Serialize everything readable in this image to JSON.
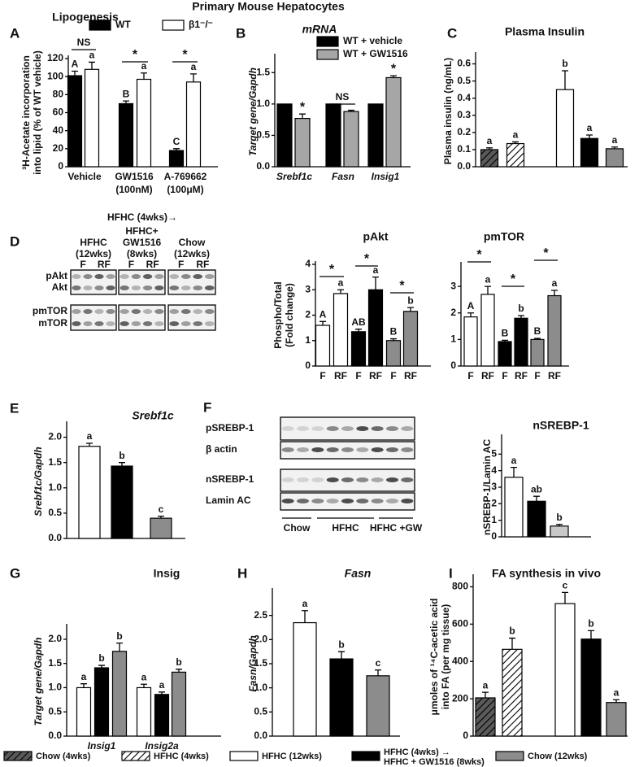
{
  "title": "Primary Mouse Hepatocytes",
  "chart_data": [
    {
      "panel": "A",
      "type": "bar",
      "title": "Lipogenesis",
      "ylabel": [
        "³H-Acetate incorporation",
        "into lipid (% of WT vehicle)"
      ],
      "categories": [
        "Vehicle",
        "GW1516",
        "A-769662"
      ],
      "category_sublabels": [
        null,
        "(100nM)",
        "(100μM)"
      ],
      "series": [
        {
          "name": "WT",
          "color": "#000000",
          "values": [
            101,
            70,
            18
          ],
          "errors": [
            5,
            3,
            2
          ],
          "letters": [
            "A",
            "B",
            "C"
          ]
        },
        {
          "name": "β1⁻/⁻",
          "color": "#ffffff",
          "values": [
            108,
            97,
            94
          ],
          "errors": [
            8,
            7,
            9
          ],
          "letters": [
            "a",
            "a",
            "a"
          ]
        }
      ],
      "brackets": [
        "NS",
        "*",
        "*"
      ],
      "ylim": [
        0,
        120
      ],
      "yticks": [
        0,
        20,
        40,
        60,
        80,
        100,
        120
      ]
    },
    {
      "panel": "B",
      "type": "bar",
      "title": "mRNA",
      "ylabel": "Target gene/Gapdh",
      "categories": [
        "Srebf1c",
        "Fasn",
        "Insig1"
      ],
      "series": [
        {
          "name": "WT + vehicle",
          "color": "#000000",
          "values": [
            1,
            1,
            1
          ]
        },
        {
          "name": "WT + GW1516",
          "color": "#a6a6a6",
          "values": [
            0.77,
            0.88,
            1.42
          ],
          "errors": [
            0.07,
            0.02,
            0.03
          ],
          "letters": [
            "*",
            null,
            "*"
          ]
        }
      ],
      "brackets": [
        null,
        "NS",
        null
      ],
      "ylim": [
        0,
        1.75
      ],
      "yticks": [
        {
          "value": 0,
          "label": "0.0"
        },
        0.5,
        {
          "value": 1,
          "label": "1.0"
        },
        1.5
      ]
    },
    {
      "panel": "C",
      "type": "bar",
      "title": "Plasma Insulin",
      "ylabel": "Plasma insulin (ng/mL)",
      "series": [
        {
          "color": [
            "#5a5a5a",
            "#ffffff",
            "#ffffff",
            "#000000",
            "#8c8c8c"
          ],
          "hatch": [
            true,
            true,
            false,
            false,
            false
          ],
          "values": [
            0.1,
            0.135,
            0.45,
            0.165,
            0.105
          ],
          "errors": [
            0.01,
            0.01,
            0.11,
            0.02,
            0.01
          ],
          "letters": [
            "a",
            "a",
            "b",
            "a",
            "a"
          ]
        }
      ],
      "ylim": [
        0,
        0.65
      ],
      "yticks": [
        {
          "value": 0,
          "label": "0.0"
        },
        0.1,
        0.2,
        0.3,
        0.4,
        0.5,
        0.6
      ]
    },
    {
      "type": "bar",
      "title": "pAkt",
      "ylabel": [
        "Phospho/Total",
        "(Fold change)"
      ],
      "categories": [
        "F",
        "RF",
        "F",
        "RF",
        "F",
        "RF"
      ],
      "series": [
        {
          "color": [
            "#ffffff",
            "#ffffff",
            "#000000",
            "#000000",
            "#8c8c8c",
            "#8c8c8c"
          ],
          "values": [
            1.6,
            2.85,
            1.35,
            3.0,
            1.0,
            2.15
          ],
          "errors": [
            0.15,
            0.15,
            0.1,
            0.5,
            0.07,
            0.15
          ],
          "letters": [
            "A",
            "a",
            "AB",
            "a",
            "B",
            "b"
          ]
        }
      ],
      "brackets": [
        "*",
        "*",
        "*"
      ],
      "ylim": [
        0,
        4
      ],
      "yticks": [
        0,
        1,
        2,
        3,
        4
      ]
    },
    {
      "type": "bar",
      "title": "pmTOR",
      "categories": [
        "F",
        "RF",
        "F",
        "RF",
        "F",
        "RF"
      ],
      "series": [
        {
          "color": [
            "#ffffff",
            "#ffffff",
            "#000000",
            "#000000",
            "#8c8c8c",
            "#8c8c8c"
          ],
          "values": [
            1.85,
            2.7,
            0.92,
            1.8,
            1.0,
            2.65
          ],
          "errors": [
            0.15,
            0.3,
            0.05,
            0.1,
            0.04,
            0.2
          ],
          "letters": [
            "A",
            "a",
            "B",
            "b",
            "B",
            "a"
          ]
        }
      ],
      "brackets": [
        "*",
        "*",
        "*"
      ],
      "ylim": [
        0,
        3.8
      ],
      "yticks": [
        0,
        1,
        2,
        3
      ]
    },
    {
      "panel": "E",
      "type": "bar",
      "title": "Srebf1c",
      "ylabel": "Srebf1c/Gapdh",
      "series": [
        {
          "color": [
            "#ffffff",
            "#000000",
            "#8c8c8c"
          ],
          "values": [
            1.82,
            1.43,
            0.4
          ],
          "errors": [
            0.06,
            0.07,
            0.04
          ],
          "letters": [
            "a",
            "b",
            "c"
          ]
        }
      ],
      "ylim": [
        0,
        2.25
      ],
      "yticks": [
        {
          "value": 0,
          "label": "0.0"
        },
        0.5,
        {
          "value": 1,
          "label": "1.0"
        },
        1.5,
        {
          "value": 2,
          "label": "2.0"
        }
      ]
    },
    {
      "type": "bar",
      "title": "nSREBP-1",
      "ylabel": "nSREBP-1/Lamin AC",
      "series": [
        {
          "color": [
            "#ffffff",
            "#000000",
            "#c8c8c8"
          ],
          "values": [
            3.6,
            2.15,
            0.65
          ],
          "errors": [
            0.6,
            0.3,
            0.1
          ],
          "letters": [
            "a",
            "ab",
            "b"
          ]
        }
      ],
      "ylim": [
        0,
        6
      ],
      "yticks": [
        0,
        1,
        2,
        3,
        4,
        5
      ]
    },
    {
      "panel": "G",
      "type": "bar",
      "title": "Insig",
      "ylabel": "Target gene/Gapdh",
      "categories": [
        "Insig1",
        "Insig2a"
      ],
      "series": [
        {
          "color": "#ffffff",
          "values": [
            1.0,
            1.0
          ],
          "errors": [
            0.08,
            0.07
          ],
          "letters": [
            "a",
            "a"
          ]
        },
        {
          "color": "#000000",
          "values": [
            1.41,
            0.86
          ],
          "errors": [
            0.05,
            0.05
          ],
          "letters": [
            "b",
            "a"
          ]
        },
        {
          "color": "#8c8c8c",
          "values": [
            1.75,
            1.32
          ],
          "errors": [
            0.17,
            0.06
          ],
          "letters": [
            "b",
            "b"
          ]
        }
      ],
      "ylim": [
        0,
        2.25
      ],
      "yticks": [
        {
          "value": 0,
          "label": "0.0"
        },
        0.5,
        {
          "value": 1,
          "label": "1.0"
        },
        1.5,
        {
          "value": 2,
          "label": "2.0"
        }
      ]
    },
    {
      "panel": "H",
      "type": "bar",
      "title": "Fasn",
      "ylabel": "Fasn/Gapdh",
      "series": [
        {
          "color": [
            "#ffffff",
            "#000000",
            "#8c8c8c"
          ],
          "values": [
            2.35,
            1.6,
            1.25
          ],
          "errors": [
            0.25,
            0.15,
            0.12
          ],
          "letters": [
            "a",
            "b",
            "c"
          ]
        }
      ],
      "ylim": [
        0,
        3
      ],
      "yticks": [
        {
          "value": 0,
          "label": "0.0"
        },
        0.5,
        {
          "value": 1,
          "label": "1.0"
        },
        1.5,
        {
          "value": 2,
          "label": "2.0"
        },
        2.5
      ]
    },
    {
      "panel": "I",
      "type": "bar",
      "title": "FA synthesis in vivo",
      "ylabel": [
        "μmoles of ¹⁴C-acetic acid",
        "into FA (per mg tissue)"
      ],
      "series": [
        {
          "color": [
            "#5a5a5a",
            "#ffffff",
            "#ffffff",
            "#000000",
            "#8c8c8c"
          ],
          "hatch": [
            true,
            true,
            false,
            false,
            false
          ],
          "values": [
            205,
            465,
            710,
            520,
            180
          ],
          "errors": [
            30,
            60,
            60,
            45,
            15
          ],
          "letters": [
            "a",
            "b",
            "c",
            "b",
            "a"
          ]
        }
      ],
      "ylim": [
        0,
        850
      ],
      "yticks": [
        0,
        200,
        400,
        600,
        800
      ]
    }
  ],
  "blots": [
    {
      "panel": "D",
      "header": "HFHC (4wks)→",
      "rows": [
        "pAkt",
        "Akt",
        "pmTOR",
        "mTOR"
      ],
      "groups": [
        {
          "label": [
            "HFHC",
            "(12wks)"
          ],
          "lanes": [
            "F",
            "RF"
          ]
        },
        {
          "label": [
            "HFHC+",
            "GW1516",
            "(8wks)"
          ],
          "lanes": [
            "F",
            "RF"
          ]
        },
        {
          "label": [
            "Chow",
            "(12wks)"
          ],
          "lanes": [
            "F",
            "RF"
          ]
        }
      ]
    },
    {
      "panel": "F",
      "rows": [
        "pSREBP-1",
        "β actin",
        "nSREBP-1",
        "Lamin AC"
      ],
      "groups": [
        {
          "label": "Chow"
        },
        {
          "label": "HFHC"
        },
        {
          "label": "HFHC +GW"
        }
      ]
    }
  ],
  "legend": [
    {
      "name": "Chow (4wks)",
      "color": "#5a5a5a",
      "hatch": true
    },
    {
      "name": "HFHC (4wks)",
      "color": "#ffffff",
      "hatch": true
    },
    {
      "name": "HFHC (12wks)",
      "color": "#ffffff"
    },
    {
      "name": [
        "HFHC (4wks) →",
        "HFHC + GW1516 (8wks)"
      ],
      "color": "#000000"
    },
    {
      "name": "Chow (12wks)",
      "color": "#8c8c8c"
    }
  ]
}
